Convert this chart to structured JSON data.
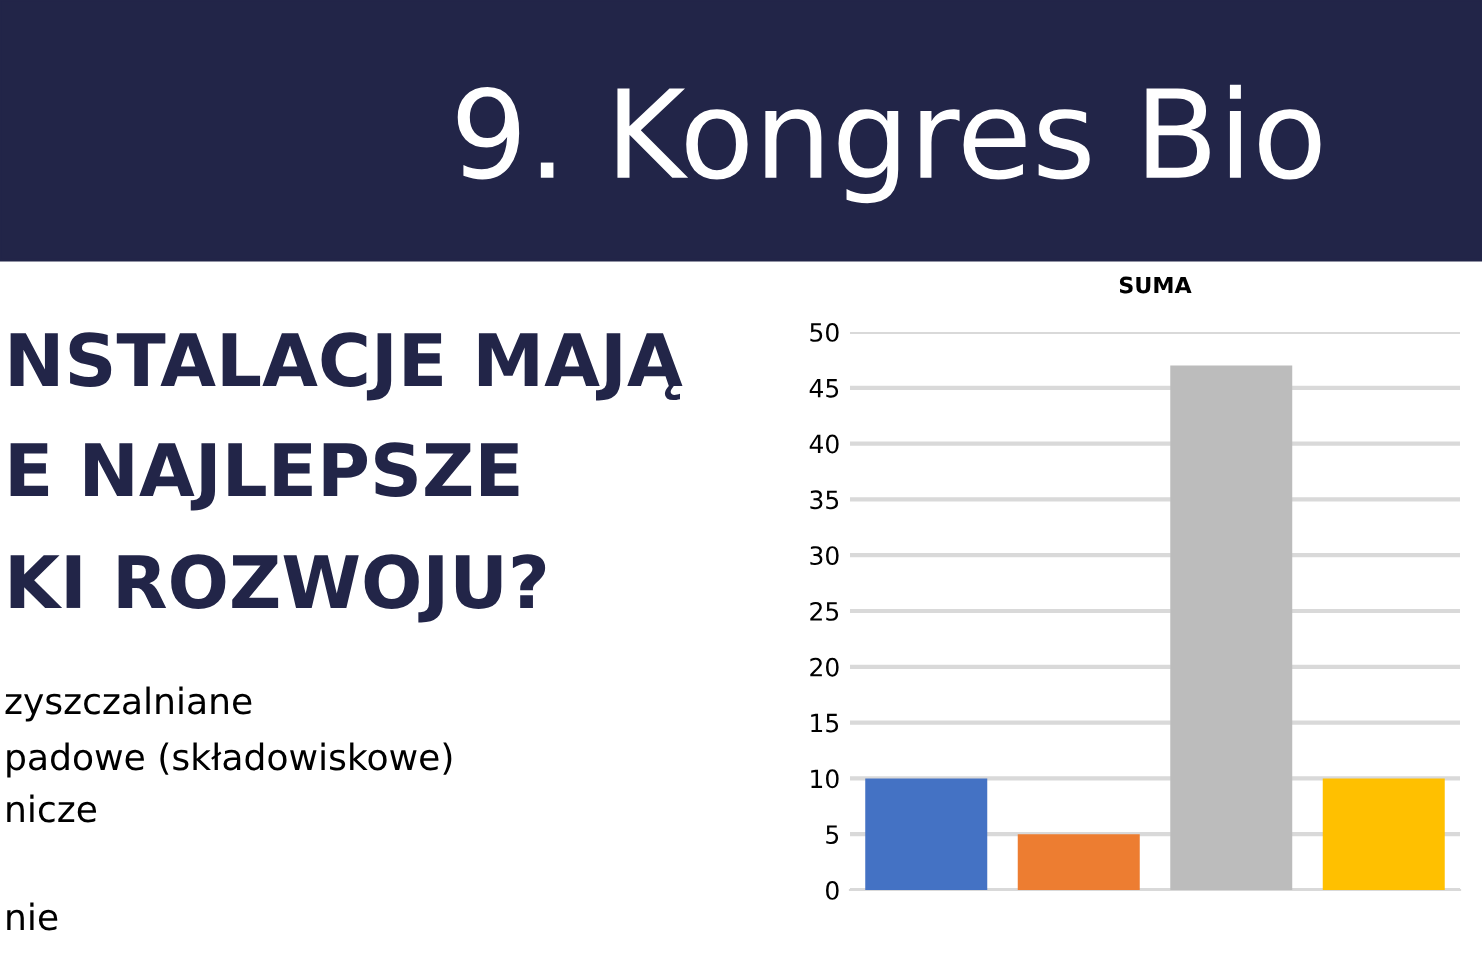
{
  "chart_data": {
    "type": "bar",
    "title": "SUMA",
    "categories": [
      null,
      null,
      null,
      null
    ],
    "values": [
      10,
      5,
      47,
      10
    ],
    "colors": [
      "#4472c4",
      "#ed7d31",
      "#bcbcbc",
      "#ffc000"
    ],
    "ylim": [
      0,
      50
    ],
    "yticks": [
      0,
      5,
      10,
      15,
      20,
      25,
      30,
      35,
      40,
      45,
      50
    ],
    "grid": "y",
    "annotations": [
      "9. Kongres Bio",
      "NSTALACJE MAJĄ",
      "E NAJLEPSZE",
      "KI ROZWOJU?",
      "zyszczalniane",
      "padowe (składowiskowe)",
      "nicze",
      "nie"
    ]
  }
}
